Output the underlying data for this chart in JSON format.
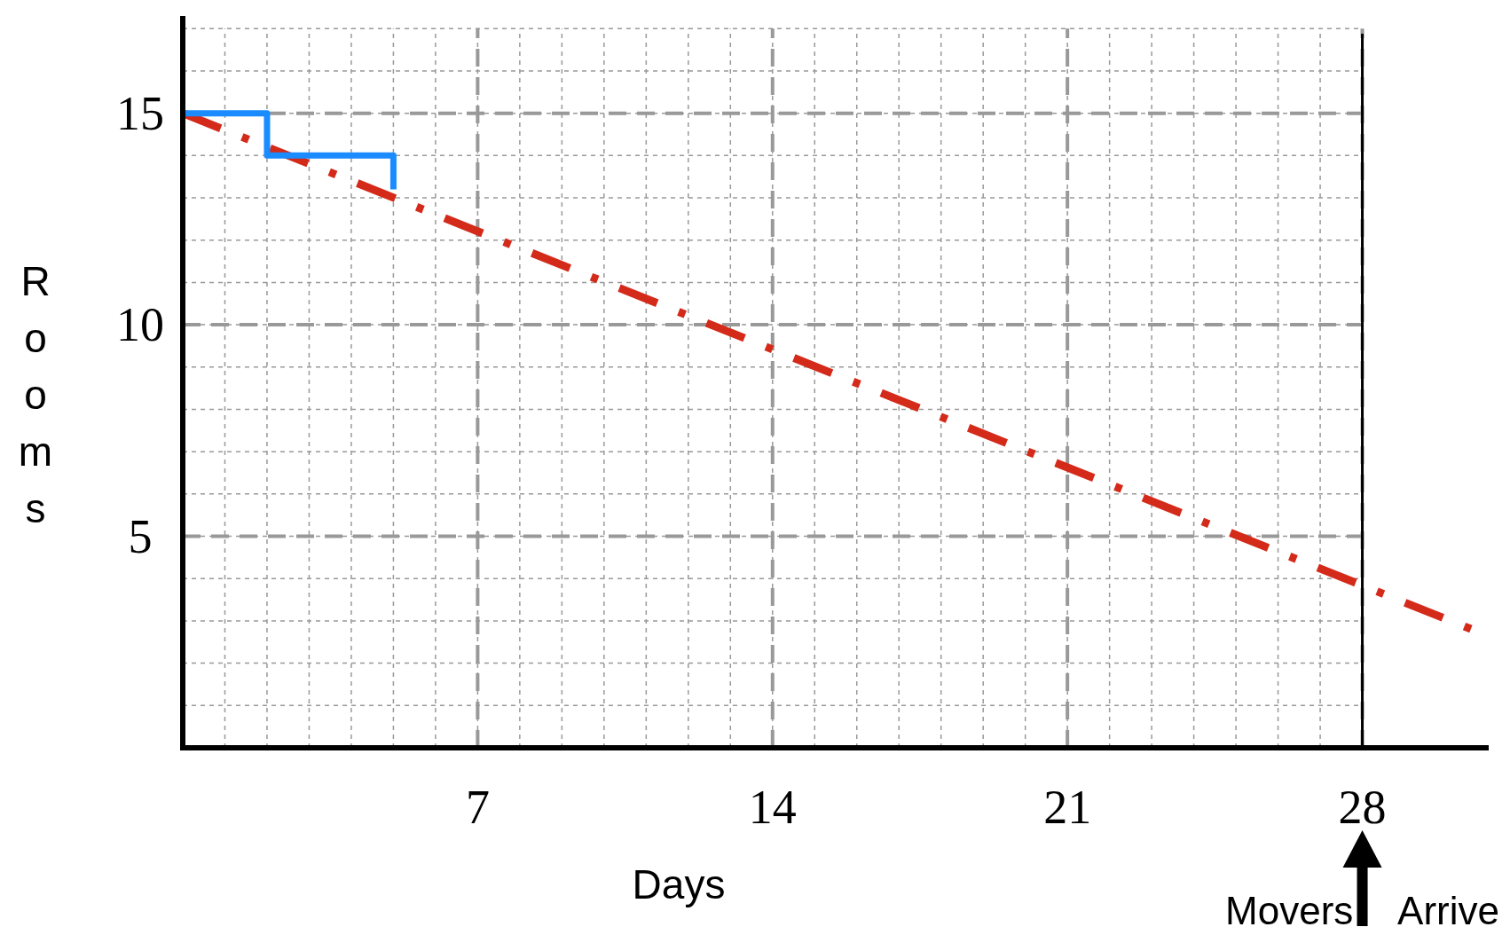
{
  "chart_data": {
    "type": "line",
    "xlabel": "Days",
    "ylabel": "Rooms",
    "xlim": [
      0,
      31
    ],
    "ylim": [
      0,
      17.3
    ],
    "xticks": [
      7,
      14,
      21,
      28
    ],
    "yticks": [
      5,
      10,
      15
    ],
    "grid": true,
    "series": [
      {
        "color": "#d42a1a",
        "x": [
          0,
          30.6
        ],
        "values": [
          15,
          2.8
        ],
        "line_style": "dashed"
      },
      {
        "type": "step",
        "color": "#1a8cff",
        "x": [
          0,
          2,
          5
        ],
        "values": [
          15,
          14,
          13.2
        ]
      }
    ],
    "ref_lines": [
      {
        "axis": "x",
        "value": 28,
        "label": "Movers Arrive",
        "color": "#000000"
      }
    ]
  }
}
